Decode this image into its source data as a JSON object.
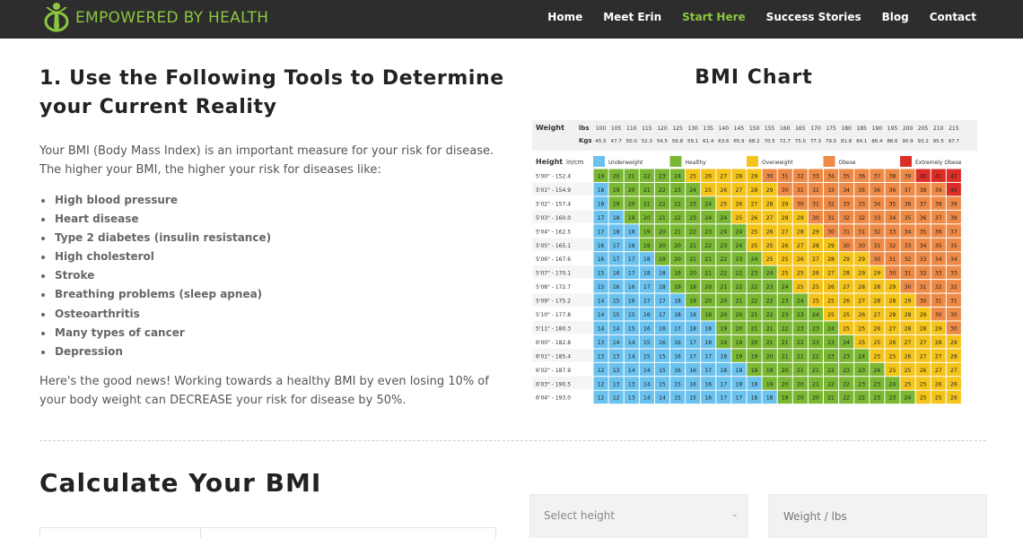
{
  "header": {
    "logo_text": "EMPOWERED BY HEALTH",
    "nav": [
      "Home",
      "Meet Erin",
      "Start Here",
      "Success Stories",
      "Blog",
      "Contact"
    ],
    "active_nav": "Start Here",
    "brand_color": "#8cc63f"
  },
  "section1": {
    "title": "1. Use the Following Tools to Determine your Current Reality",
    "intro": "Your BMI (Body Mass Index) is an important measure for your risk for disease.   The higher your BMI, the higher your risk for diseases like:",
    "risks": [
      "High blood pressure",
      "Heart disease",
      "Type 2 diabetes (insulin resistance)",
      "High cholesterol",
      "Stroke",
      "Breathing problems (sleep apnea)",
      "Osteoarthritis",
      "Many types of cancer",
      "Depression"
    ],
    "good_news": "Here's the good news!  Working towards a healthy BMI by even losing 10% of your body weight can DECREASE your risk for disease by 50%."
  },
  "chart_data": {
    "type": "heatmap",
    "title": "BMI Chart",
    "weight_label": "Weight",
    "weight_unit": "lbs",
    "kg_unit": "Kgs",
    "height_label": "Height",
    "height_unit": "in/cm",
    "weights_lbs": [
      "100",
      "105",
      "110",
      "115",
      "120",
      "125",
      "130",
      "135",
      "140",
      "145",
      "150",
      "155",
      "160",
      "165",
      "170",
      "175",
      "180",
      "185",
      "190",
      "195",
      "200",
      "205",
      "210",
      "215"
    ],
    "weights_kgs": [
      "45.5",
      "47.7",
      "50.0",
      "52.3",
      "54.5",
      "56.8",
      "59.1",
      "61.4",
      "63.6",
      "65.9",
      "68.2",
      "70.5",
      "72.7",
      "75.0",
      "77.3",
      "79.5",
      "81.8",
      "84.1",
      "86.4",
      "88.6",
      "90.9",
      "93.2",
      "95.5",
      "97.7"
    ],
    "heights": [
      "5'00\" - 152.4",
      "5'01\" - 154.9",
      "5'02\" - 157.4",
      "5'03\" - 160.0",
      "5'04\" - 162.5",
      "5'05\" - 165.1",
      "5'06\" - 167.6",
      "5'07\" - 170.1",
      "5'08\" - 172.7",
      "5'09\" - 175.2",
      "5'10\" - 177.8",
      "5'11\" - 180.3",
      "6'00\" - 182.8",
      "6'01\" - 185.4",
      "6'02\" - 187.9",
      "6'03\" - 190.5",
      "6'04\" - 193.0"
    ],
    "bmi": [
      [
        19,
        20,
        21,
        22,
        23,
        24,
        25,
        26,
        27,
        28,
        29,
        30,
        31,
        32,
        33,
        34,
        35,
        36,
        37,
        38,
        39,
        40,
        41,
        42
      ],
      [
        18,
        19,
        20,
        21,
        22,
        23,
        24,
        25,
        26,
        27,
        28,
        29,
        30,
        31,
        32,
        33,
        34,
        35,
        36,
        36,
        37,
        38,
        39,
        40
      ],
      [
        18,
        19,
        20,
        21,
        22,
        22,
        23,
        24,
        25,
        26,
        27,
        28,
        29,
        30,
        31,
        32,
        33,
        33,
        34,
        35,
        36,
        37,
        38,
        39
      ],
      [
        17,
        18,
        19,
        20,
        21,
        22,
        23,
        24,
        24,
        25,
        26,
        27,
        28,
        29,
        30,
        31,
        32,
        32,
        33,
        34,
        35,
        36,
        37,
        38
      ],
      [
        17,
        18,
        18,
        19,
        20,
        21,
        22,
        23,
        24,
        24,
        25,
        26,
        27,
        28,
        29,
        30,
        31,
        31,
        32,
        33,
        34,
        35,
        36,
        37
      ],
      [
        16,
        17,
        18,
        19,
        20,
        20,
        21,
        22,
        23,
        24,
        25,
        25,
        26,
        27,
        28,
        29,
        30,
        30,
        31,
        32,
        33,
        34,
        35,
        35
      ],
      [
        16,
        17,
        17,
        18,
        19,
        20,
        21,
        21,
        22,
        23,
        24,
        25,
        25,
        26,
        27,
        28,
        29,
        29,
        30,
        31,
        32,
        33,
        34,
        34
      ],
      [
        15,
        16,
        17,
        18,
        18,
        19,
        20,
        21,
        22,
        22,
        23,
        24,
        25,
        25,
        26,
        27,
        28,
        29,
        29,
        30,
        31,
        32,
        33,
        33
      ],
      [
        15,
        16,
        16,
        17,
        18,
        19,
        19,
        20,
        21,
        22,
        22,
        23,
        24,
        25,
        25,
        26,
        27,
        28,
        28,
        29,
        30,
        31,
        32,
        32
      ],
      [
        14,
        15,
        16,
        17,
        17,
        18,
        19,
        20,
        20,
        21,
        22,
        22,
        23,
        24,
        25,
        25,
        26,
        27,
        28,
        28,
        29,
        30,
        31,
        31
      ],
      [
        14,
        15,
        15,
        16,
        17,
        18,
        18,
        19,
        20,
        20,
        21,
        22,
        23,
        23,
        24,
        25,
        25,
        26,
        27,
        28,
        28,
        29,
        30,
        30
      ],
      [
        14,
        14,
        15,
        16,
        16,
        17,
        18,
        18,
        19,
        20,
        21,
        21,
        22,
        23,
        23,
        24,
        25,
        25,
        26,
        27,
        28,
        28,
        29,
        30
      ],
      [
        13,
        14,
        14,
        15,
        16,
        16,
        17,
        18,
        19,
        19,
        20,
        21,
        21,
        22,
        23,
        23,
        24,
        25,
        25,
        26,
        27,
        27,
        28,
        29
      ],
      [
        13,
        13,
        14,
        15,
        15,
        16,
        17,
        17,
        18,
        19,
        19,
        20,
        21,
        21,
        22,
        23,
        23,
        24,
        25,
        25,
        26,
        27,
        27,
        28
      ],
      [
        12,
        13,
        14,
        14,
        15,
        16,
        16,
        17,
        18,
        18,
        19,
        19,
        20,
        21,
        21,
        22,
        23,
        23,
        24,
        25,
        25,
        26,
        27,
        27
      ],
      [
        12,
        13,
        13,
        14,
        15,
        15,
        16,
        16,
        17,
        18,
        18,
        19,
        20,
        20,
        21,
        22,
        22,
        23,
        23,
        24,
        25,
        25,
        26,
        26
      ],
      [
        12,
        12,
        13,
        14,
        14,
        15,
        15,
        16,
        17,
        17,
        18,
        18,
        19,
        20,
        20,
        21,
        22,
        22,
        23,
        23,
        24,
        25,
        25,
        26
      ]
    ],
    "legend": [
      {
        "name": "Underweight",
        "color": "#6cc2ee"
      },
      {
        "name": "Healthy",
        "color": "#7ab733"
      },
      {
        "name": "Overweight",
        "color": "#f5c41a"
      },
      {
        "name": "Obese",
        "color": "#ee8a46"
      },
      {
        "name": "Extremely Obese",
        "color": "#dc2e27"
      }
    ]
  },
  "calculator": {
    "title": "Calculate Your BMI",
    "height_placeholder": "Select height",
    "weight_placeholder": "Weight / lbs"
  }
}
